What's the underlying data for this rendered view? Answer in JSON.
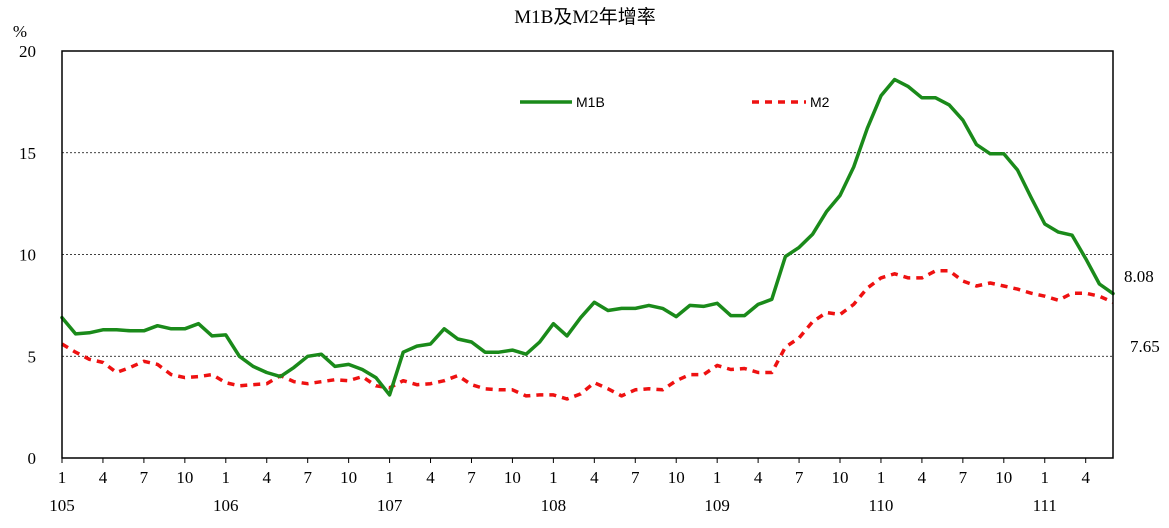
{
  "chart_data": {
    "type": "line",
    "title": "M1B及M2年增率",
    "ylabel": "%",
    "xlabel": "",
    "ylim": [
      0,
      20
    ],
    "yticks": [
      0,
      5,
      10,
      15,
      20
    ],
    "grid": "horizontal dashed at 5, 10, 15",
    "legend_position": "top-center inside plot",
    "x_tick_months": [
      "1",
      "4",
      "7",
      "10",
      "1",
      "4",
      "7",
      "10",
      "1",
      "4",
      "7",
      "10",
      "1",
      "4",
      "7",
      "10",
      "1",
      "4",
      "7",
      "10",
      "1",
      "4",
      "7",
      "10",
      "1",
      "4"
    ],
    "x_year_labels": [
      "105",
      "106",
      "107",
      "108",
      "109",
      "110",
      "111"
    ],
    "x_start": "105/01",
    "x_end": "111/06",
    "series": [
      {
        "name": "M1B",
        "color": "#1a8a1a",
        "style": "solid",
        "end_label": "8.08",
        "values": [
          6.9,
          6.1,
          6.15,
          6.3,
          6.3,
          6.25,
          6.25,
          6.5,
          6.35,
          6.35,
          6.6,
          6.0,
          6.05,
          5.0,
          4.5,
          4.2,
          4.0,
          4.45,
          5.0,
          5.1,
          4.5,
          4.6,
          4.35,
          3.95,
          3.1,
          5.2,
          5.5,
          5.6,
          6.35,
          5.85,
          5.7,
          5.2,
          5.2,
          5.3,
          5.1,
          5.7,
          6.6,
          6.0,
          6.9,
          7.65,
          7.25,
          7.35,
          7.35,
          7.5,
          7.35,
          6.95,
          7.5,
          7.45,
          7.6,
          7.0,
          7.0,
          7.55,
          7.8,
          9.9,
          10.35,
          11.0,
          12.1,
          12.9,
          14.3,
          16.2,
          17.8,
          18.6,
          18.25,
          17.7,
          17.7,
          17.35,
          16.6,
          15.4,
          14.95,
          14.95,
          14.15,
          12.8,
          11.5,
          11.1,
          10.95,
          9.8,
          8.55,
          8.08
        ]
      },
      {
        "name": "M2",
        "color": "#ee1111",
        "style": "dashed",
        "end_label": "7.65",
        "values": [
          5.6,
          5.2,
          4.85,
          4.7,
          4.2,
          4.45,
          4.75,
          4.6,
          4.1,
          3.95,
          4.0,
          4.1,
          3.7,
          3.55,
          3.6,
          3.65,
          4.05,
          3.75,
          3.65,
          3.75,
          3.85,
          3.8,
          4.0,
          3.55,
          3.45,
          3.8,
          3.6,
          3.65,
          3.8,
          4.05,
          3.6,
          3.4,
          3.35,
          3.35,
          3.05,
          3.1,
          3.1,
          2.9,
          3.15,
          3.7,
          3.4,
          3.05,
          3.35,
          3.4,
          3.35,
          3.8,
          4.1,
          4.1,
          4.55,
          4.35,
          4.4,
          4.2,
          4.2,
          5.45,
          5.9,
          6.7,
          7.15,
          7.05,
          7.55,
          8.35,
          8.85,
          9.05,
          8.85,
          8.85,
          9.2,
          9.2,
          8.7,
          8.45,
          8.6,
          8.45,
          8.3,
          8.1,
          7.95,
          7.75,
          8.1,
          8.1,
          7.95,
          7.65
        ]
      }
    ]
  }
}
